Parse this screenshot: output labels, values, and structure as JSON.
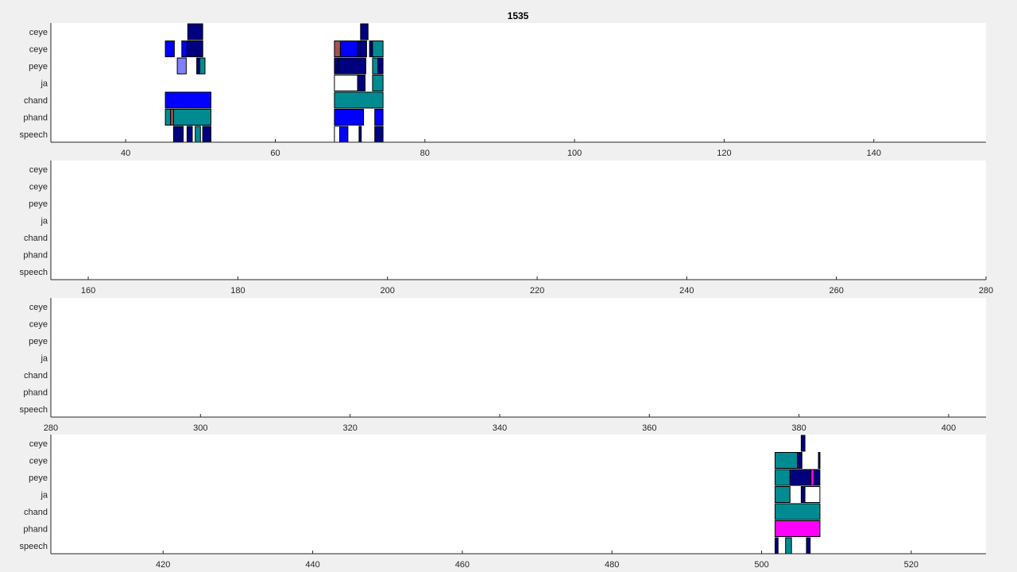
{
  "chart_data": {
    "type": "timeline",
    "title": "1535",
    "rows": [
      "ceye",
      "ceye",
      "peye",
      "ja",
      "chand",
      "phand",
      "speech"
    ],
    "colors": {
      "navy": "#00007f",
      "blue": "#0000ff",
      "teal": "#008b92",
      "lightblue": "#8080ff",
      "brown": "#a0524f",
      "magenta": "#ff00ff",
      "white": "#ffffff"
    },
    "panels": [
      {
        "xlim": [
          30,
          155
        ],
        "xticks": [
          40,
          60,
          80,
          100,
          120,
          140
        ],
        "segments": [
          {
            "row": 0,
            "start": 48.3,
            "end": 50.3,
            "color": "navy"
          },
          {
            "row": 0,
            "start": 71.4,
            "end": 72.4,
            "color": "navy"
          },
          {
            "row": 1,
            "start": 45.3,
            "end": 46.5,
            "color": "blue"
          },
          {
            "row": 1,
            "start": 47.5,
            "end": 48.2,
            "color": "blue"
          },
          {
            "row": 1,
            "start": 48.2,
            "end": 50.3,
            "color": "navy"
          },
          {
            "row": 1,
            "start": 67.9,
            "end": 68.7,
            "color": "brown"
          },
          {
            "row": 1,
            "start": 68.7,
            "end": 71.0,
            "color": "blue"
          },
          {
            "row": 1,
            "start": 71.0,
            "end": 72.2,
            "color": "navy"
          },
          {
            "row": 1,
            "start": 72.6,
            "end": 73.0,
            "color": "navy"
          },
          {
            "row": 1,
            "start": 73.0,
            "end": 74.4,
            "color": "teal"
          },
          {
            "row": 2,
            "start": 46.9,
            "end": 48.1,
            "color": "lightblue"
          },
          {
            "row": 2,
            "start": 49.5,
            "end": 49.9,
            "color": "navy"
          },
          {
            "row": 2,
            "start": 49.9,
            "end": 50.6,
            "color": "teal"
          },
          {
            "row": 2,
            "start": 67.9,
            "end": 68.4,
            "color": "navy"
          },
          {
            "row": 2,
            "start": 68.4,
            "end": 72.1,
            "color": "navy"
          },
          {
            "row": 2,
            "start": 73.0,
            "end": 73.7,
            "color": "teal"
          },
          {
            "row": 2,
            "start": 73.7,
            "end": 74.4,
            "color": "navy"
          },
          {
            "row": 3,
            "start": 67.9,
            "end": 71.0,
            "color": "white"
          },
          {
            "row": 3,
            "start": 71.0,
            "end": 72.0,
            "color": "navy"
          },
          {
            "row": 3,
            "start": 73.0,
            "end": 74.4,
            "color": "teal"
          },
          {
            "row": 4,
            "start": 45.3,
            "end": 51.4,
            "color": "blue"
          },
          {
            "row": 4,
            "start": 67.9,
            "end": 74.4,
            "color": "teal"
          },
          {
            "row": 5,
            "start": 45.3,
            "end": 46.0,
            "color": "teal"
          },
          {
            "row": 5,
            "start": 46.0,
            "end": 46.4,
            "color": "brown"
          },
          {
            "row": 5,
            "start": 46.4,
            "end": 51.4,
            "color": "teal"
          },
          {
            "row": 5,
            "start": 67.9,
            "end": 71.8,
            "color": "blue"
          },
          {
            "row": 5,
            "start": 73.3,
            "end": 74.4,
            "color": "blue"
          },
          {
            "row": 6,
            "start": 46.4,
            "end": 47.7,
            "color": "navy"
          },
          {
            "row": 6,
            "start": 48.2,
            "end": 48.9,
            "color": "navy"
          },
          {
            "row": 6,
            "start": 49.3,
            "end": 50.0,
            "color": "teal"
          },
          {
            "row": 6,
            "start": 50.3,
            "end": 51.4,
            "color": "navy"
          },
          {
            "row": 6,
            "start": 67.9,
            "end": 68.6,
            "color": "white"
          },
          {
            "row": 6,
            "start": 68.6,
            "end": 69.7,
            "color": "blue"
          },
          {
            "row": 6,
            "start": 71.2,
            "end": 71.5,
            "color": "navy"
          },
          {
            "row": 6,
            "start": 73.3,
            "end": 74.4,
            "color": "navy"
          }
        ]
      },
      {
        "xlim": [
          155,
          280
        ],
        "xticks": [
          160,
          180,
          200,
          220,
          240,
          260,
          280
        ],
        "segments": []
      },
      {
        "xlim": [
          280,
          405
        ],
        "xticks": [
          280,
          300,
          320,
          340,
          360,
          380,
          400
        ],
        "segments": []
      },
      {
        "xlim": [
          405,
          530
        ],
        "xticks": [
          420,
          440,
          460,
          480,
          500,
          520
        ],
        "segments": [
          {
            "row": 0,
            "start": 505.3,
            "end": 505.8,
            "color": "navy"
          },
          {
            "row": 1,
            "start": 501.8,
            "end": 504.8,
            "color": "teal"
          },
          {
            "row": 1,
            "start": 504.8,
            "end": 505.4,
            "color": "navy"
          },
          {
            "row": 1,
            "start": 507.6,
            "end": 507.8,
            "color": "navy"
          },
          {
            "row": 2,
            "start": 501.8,
            "end": 503.8,
            "color": "teal"
          },
          {
            "row": 2,
            "start": 503.8,
            "end": 506.6,
            "color": "navy"
          },
          {
            "row": 2,
            "start": 506.6,
            "end": 507.0,
            "color": "magenta"
          },
          {
            "row": 2,
            "start": 507.0,
            "end": 507.8,
            "color": "navy"
          },
          {
            "row": 3,
            "start": 501.8,
            "end": 503.8,
            "color": "teal"
          },
          {
            "row": 3,
            "start": 505.3,
            "end": 505.8,
            "color": "navy"
          },
          {
            "row": 3,
            "start": 505.8,
            "end": 507.8,
            "color": "white"
          },
          {
            "row": 4,
            "start": 501.8,
            "end": 507.8,
            "color": "teal"
          },
          {
            "row": 5,
            "start": 501.8,
            "end": 507.8,
            "color": "magenta"
          },
          {
            "row": 6,
            "start": 501.8,
            "end": 502.2,
            "color": "navy"
          },
          {
            "row": 6,
            "start": 503.2,
            "end": 504.0,
            "color": "teal"
          },
          {
            "row": 6,
            "start": 506.0,
            "end": 506.5,
            "color": "navy"
          }
        ]
      }
    ]
  }
}
